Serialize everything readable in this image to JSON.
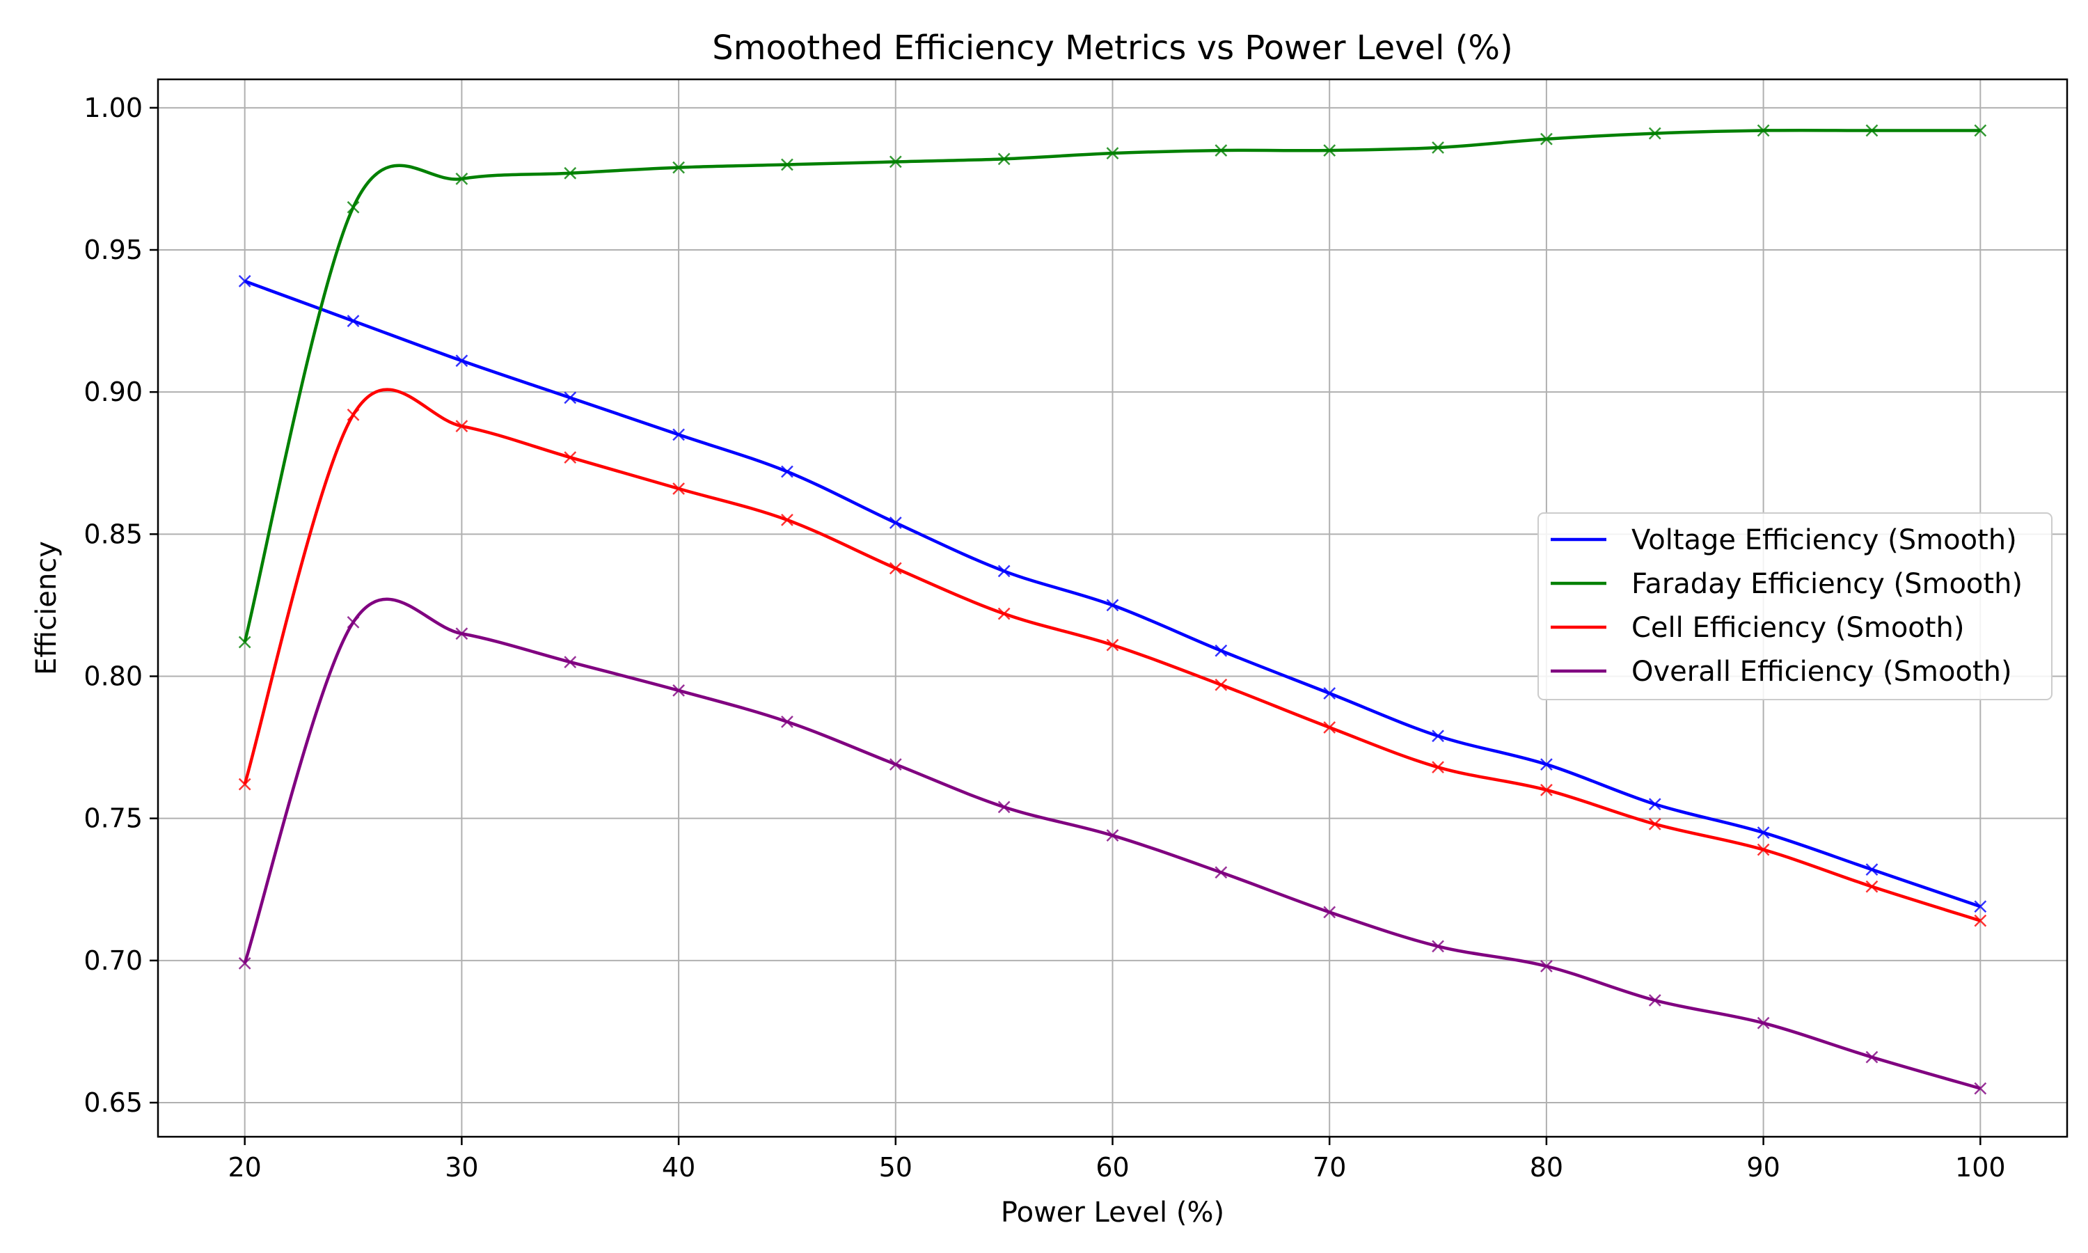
{
  "chart_data": {
    "type": "line",
    "title": "Smoothed Efficiency Metrics vs Power Level (%)",
    "xlabel": "Power Level (%)",
    "ylabel": "Efficiency",
    "xlim": [
      16,
      104
    ],
    "ylim": [
      0.638,
      1.01
    ],
    "x_ticks": [
      20,
      30,
      40,
      50,
      60,
      70,
      80,
      90,
      100
    ],
    "x_tick_labels": [
      "20",
      "30",
      "40",
      "50",
      "60",
      "70",
      "80",
      "90",
      "100"
    ],
    "y_ticks": [
      0.65,
      0.7,
      0.75,
      0.8,
      0.85,
      0.9,
      0.95,
      1.0
    ],
    "y_tick_labels": [
      "0.65",
      "0.70",
      "0.75",
      "0.80",
      "0.85",
      "0.90",
      "0.95",
      "1.00"
    ],
    "grid": true,
    "legend_position": "center-right",
    "x": [
      20,
      25,
      30,
      35,
      40,
      45,
      50,
      55,
      60,
      65,
      70,
      75,
      80,
      85,
      90,
      95,
      100
    ],
    "series": [
      {
        "name": "Voltage Efficiency (Smooth)",
        "color": "#0000ff",
        "marker": "x",
        "values": [
          0.939,
          0.925,
          0.911,
          0.898,
          0.885,
          0.872,
          0.854,
          0.837,
          0.825,
          0.809,
          0.794,
          0.779,
          0.769,
          0.755,
          0.745,
          0.732,
          0.719
        ]
      },
      {
        "name": "Faraday Efficiency (Smooth)",
        "color": "#008000",
        "marker": "x",
        "values": [
          0.812,
          0.965,
          0.975,
          0.977,
          0.979,
          0.98,
          0.981,
          0.982,
          0.984,
          0.985,
          0.985,
          0.986,
          0.989,
          0.991,
          0.992,
          0.992,
          0.992
        ]
      },
      {
        "name": "Cell Efficiency (Smooth)",
        "color": "#ff0000",
        "marker": "x",
        "values": [
          0.762,
          0.892,
          0.888,
          0.877,
          0.866,
          0.855,
          0.838,
          0.822,
          0.811,
          0.797,
          0.782,
          0.768,
          0.76,
          0.748,
          0.739,
          0.726,
          0.714
        ]
      },
      {
        "name": "Overall Efficiency (Smooth)",
        "color": "#800080",
        "marker": "x",
        "values": [
          0.699,
          0.819,
          0.815,
          0.805,
          0.795,
          0.784,
          0.769,
          0.754,
          0.744,
          0.731,
          0.717,
          0.705,
          0.698,
          0.686,
          0.678,
          0.666,
          0.655
        ]
      }
    ]
  }
}
